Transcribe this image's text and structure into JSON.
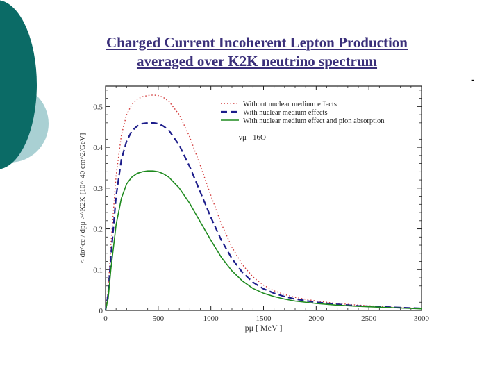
{
  "slide": {
    "title_line1": "Charged Current Incoherent Lepton Production",
    "title_line2": "averaged over K2K neutrino spectrum",
    "corner_mark": "-"
  },
  "colors": {
    "deco_dark": "#0b6b66",
    "deco_light": "#a9d0d3",
    "title": "#3a2f7a",
    "series_red": "#d23a3a",
    "series_blue": "#1c1c8a",
    "series_green": "#1e8a1e"
  },
  "chart_data": {
    "type": "line",
    "title": "",
    "xlabel": "pμ [ MeV ]",
    "ylabel": "< dσ^cc / dpμ >^K2K [10^-40 cm^2/GeV]",
    "xlim": [
      0,
      3000
    ],
    "ylim": [
      0,
      0.55
    ],
    "x_ticks": [
      0,
      500,
      1000,
      1500,
      2000,
      2500,
      3000
    ],
    "y_ticks": [
      0,
      0.1,
      0.2,
      0.3,
      0.4,
      0.5
    ],
    "x_tick_labels": [
      "0",
      "500",
      "1000",
      "1500",
      "2000",
      "2500",
      "3000"
    ],
    "y_tick_labels": [
      "0",
      "0.1",
      "0.2",
      "0.3",
      "0.4",
      "0.5"
    ],
    "grid": false,
    "legend_position": "top-right",
    "annotation": "νμ - 16O",
    "x": [
      0,
      25,
      50,
      100,
      150,
      200,
      250,
      300,
      350,
      400,
      450,
      500,
      550,
      600,
      700,
      800,
      900,
      1000,
      1100,
      1200,
      1300,
      1400,
      1500,
      1600,
      1700,
      1800,
      2000,
      2200,
      2400,
      2600,
      2800,
      3000
    ],
    "series": [
      {
        "name": "Without nuclear medium effects",
        "style": "dotted",
        "values": [
          0.0,
          0.05,
          0.16,
          0.33,
          0.43,
          0.48,
          0.505,
          0.518,
          0.524,
          0.527,
          0.528,
          0.527,
          0.522,
          0.513,
          0.48,
          0.425,
          0.355,
          0.282,
          0.212,
          0.155,
          0.112,
          0.082,
          0.062,
          0.048,
          0.039,
          0.032,
          0.023,
          0.017,
          0.013,
          0.01,
          0.007,
          0.005
        ]
      },
      {
        "name": "With nuclear medium effects",
        "style": "dashed",
        "values": [
          0.0,
          0.04,
          0.13,
          0.28,
          0.37,
          0.415,
          0.44,
          0.452,
          0.458,
          0.46,
          0.46,
          0.458,
          0.452,
          0.442,
          0.405,
          0.352,
          0.29,
          0.228,
          0.172,
          0.127,
          0.093,
          0.069,
          0.053,
          0.042,
          0.034,
          0.028,
          0.02,
          0.015,
          0.011,
          0.009,
          0.007,
          0.005
        ]
      },
      {
        "name": "With nuclear medium effect and pion absorption",
        "style": "solid",
        "values": [
          0.0,
          0.03,
          0.1,
          0.21,
          0.275,
          0.31,
          0.327,
          0.336,
          0.34,
          0.342,
          0.342,
          0.34,
          0.335,
          0.327,
          0.3,
          0.262,
          0.217,
          0.172,
          0.13,
          0.097,
          0.072,
          0.054,
          0.042,
          0.034,
          0.028,
          0.023,
          0.017,
          0.013,
          0.01,
          0.008,
          0.006,
          0.004
        ]
      }
    ]
  }
}
